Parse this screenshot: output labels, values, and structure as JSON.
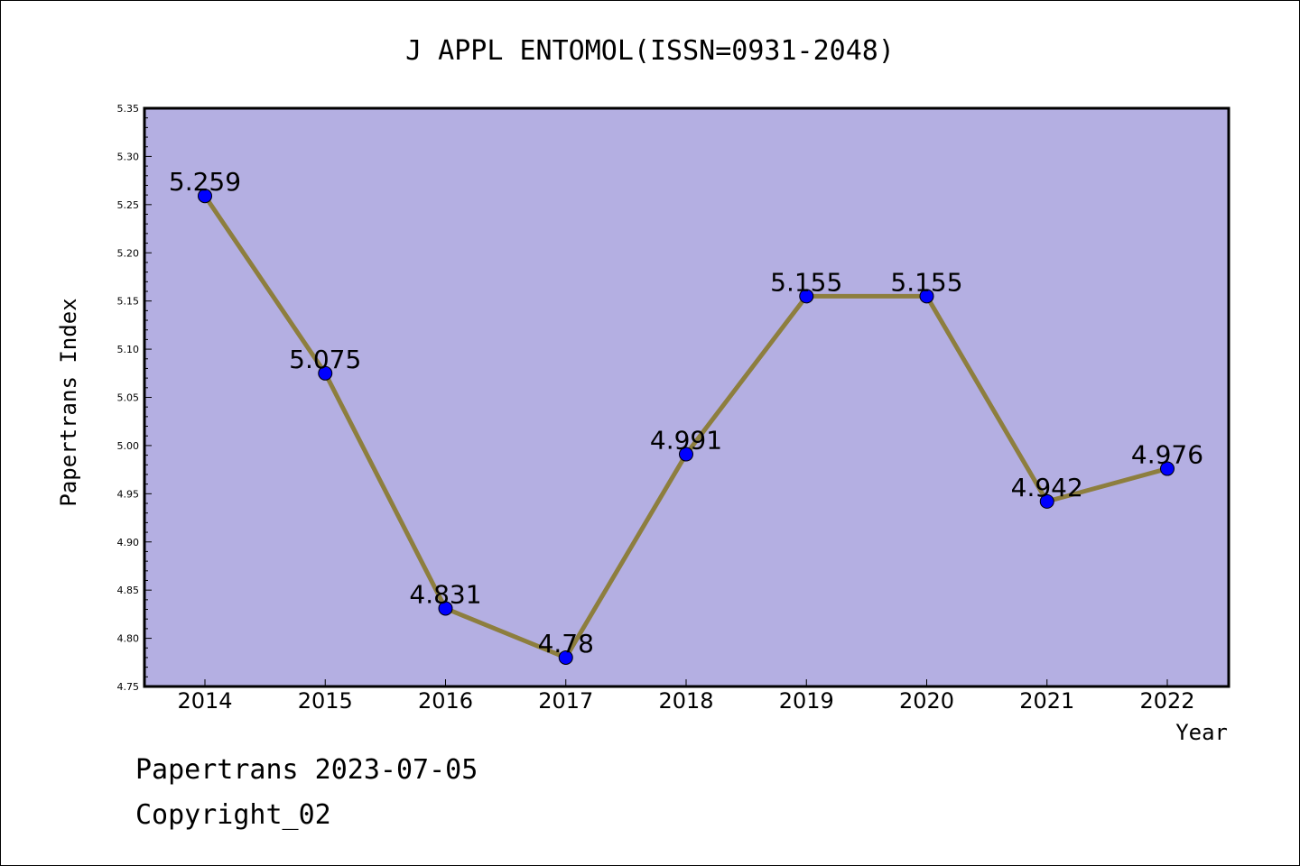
{
  "colors": {
    "plot_background": "#b4afe2",
    "line": "#8d7e3e",
    "marker": "#0000ff"
  },
  "footer": {
    "line1": "Papertrans 2023-07-05",
    "line2": "Copyright_02"
  },
  "chart_data": {
    "type": "line",
    "title": "J APPL ENTOMOL(ISSN=0931-2048)",
    "xlabel": "Year",
    "ylabel": "Papertrans Index",
    "categories": [
      "2014",
      "2015",
      "2016",
      "2017",
      "2018",
      "2019",
      "2020",
      "2021",
      "2022"
    ],
    "series": [
      {
        "values": [
          5.259,
          5.075,
          4.831,
          4.78,
          4.991,
          5.155,
          5.155,
          4.942,
          4.976
        ],
        "labels": [
          "5.259",
          "5.075",
          "4.831",
          "4.78",
          "4.991",
          "5.155",
          "5.155",
          "4.942",
          "4.976"
        ]
      }
    ],
    "ylim": [
      4.75,
      5.35
    ],
    "yticks": [
      "4.75",
      "4.80",
      "4.85",
      "4.90",
      "4.95",
      "5.00",
      "5.05",
      "5.10",
      "5.15",
      "5.20",
      "5.25",
      "5.30",
      "5.35"
    ],
    "grid": false,
    "legend": "none"
  }
}
